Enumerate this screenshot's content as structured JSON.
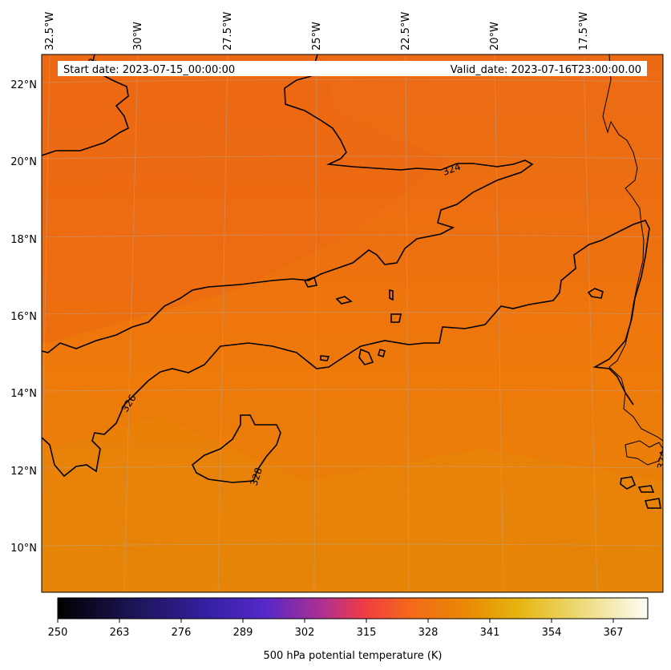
{
  "header": {
    "start_date": "Start date: 2023-07-15_00:00:00",
    "valid_date": "Valid_date: 2023-07-16T23:00:00.00"
  },
  "map": {
    "lon_labels": [
      "32.5°W",
      "30°W",
      "27.5°W",
      "25°W",
      "22.5°W",
      "20°W",
      "17.5°W"
    ],
    "lat_labels": [
      "22°N",
      "20°N",
      "18°N",
      "16°N",
      "14°N",
      "12°N",
      "10°N"
    ],
    "contour_labels": [
      "322",
      "324",
      "326",
      "328",
      "324"
    ],
    "colors": {
      "north_field": "#ec6a14",
      "mid_field": "#ee780c",
      "south_field": "#e68406",
      "contour": "#000000",
      "grid": "#b0b0b0"
    }
  },
  "colorbar": {
    "ticks": [
      "250",
      "263",
      "276",
      "289",
      "302",
      "315",
      "328",
      "341",
      "354",
      "367"
    ],
    "label": "500 hPa potential temperature (K)"
  }
}
